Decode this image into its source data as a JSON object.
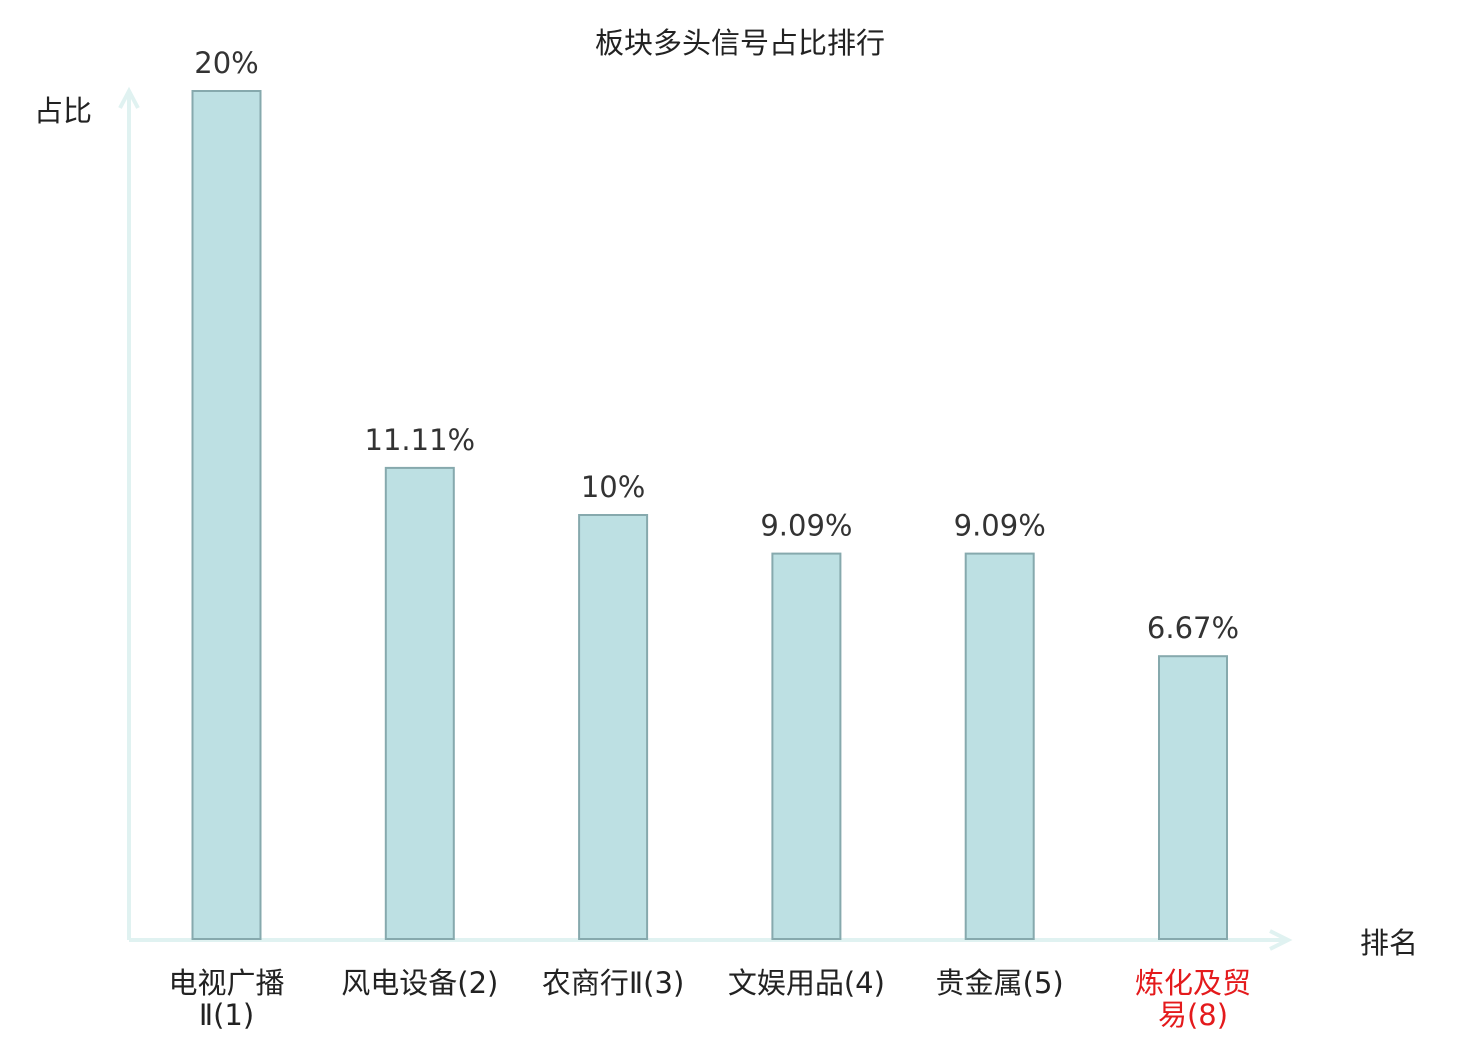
{
  "chart_data": {
    "type": "bar",
    "title": "板块多头信号占比排行",
    "ylabel": "占比",
    "xlabel": "排名",
    "ylim": [
      0,
      20
    ],
    "grid": false,
    "categories": [
      [
        "电视广播",
        "Ⅱ(1)"
      ],
      [
        "风电设备(2)"
      ],
      [
        "农商行Ⅱ(3)"
      ],
      [
        "文娱用品(4)"
      ],
      [
        "贵金属(5)"
      ],
      [
        "炼化及贸",
        "易(8)"
      ]
    ],
    "values": [
      20,
      11.11,
      10,
      9.09,
      9.09,
      6.67
    ],
    "value_labels": [
      "20%",
      "11.11%",
      "10%",
      "9.09%",
      "9.09%",
      "6.67%"
    ],
    "highlight_index": 5,
    "colors": {
      "bar_fill": "#bde0e3",
      "bar_stroke": "#86a9ad",
      "axis": "#e0f2f1",
      "text": "#333333",
      "highlight_text": "#e41a1c"
    }
  }
}
